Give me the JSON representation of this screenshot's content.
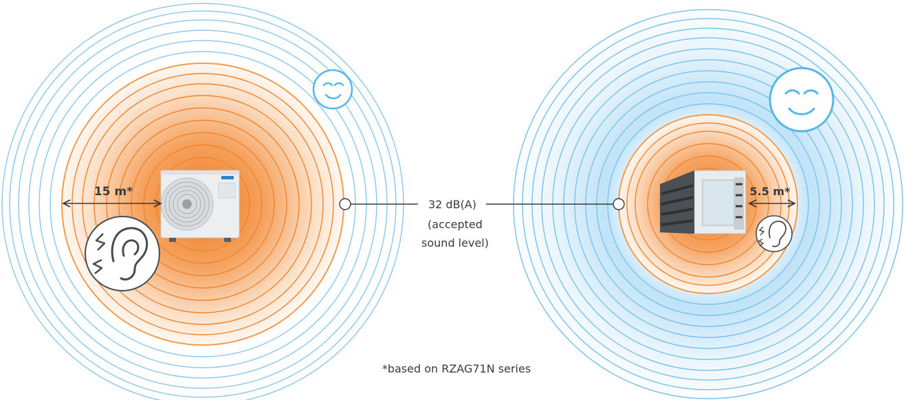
{
  "left_zone": {
    "distance_label": "15 m*",
    "unit_icon": "outdoor-ac-unit-icon",
    "listener_icon": "ear-disturbed-icon",
    "mood_icon": "calm-face-icon"
  },
  "right_zone": {
    "distance_label": "5.5 m*",
    "unit_icon": "louvred-ac-unit-icon",
    "listener_icon": "ear-disturbed-icon",
    "mood_icon": "calm-face-icon"
  },
  "threshold": {
    "level": "32 dB(A)",
    "note_line1": "(accepted",
    "note_line2": "sound level)"
  },
  "footnote": "*based on RZAG71N series",
  "colors": {
    "orange_core": "#f07a1e",
    "orange_ring": "#f29a4d",
    "blue_ring": "#8fcbee",
    "blue_glow": "#cfe9f9",
    "text": "#3a3a3a"
  }
}
